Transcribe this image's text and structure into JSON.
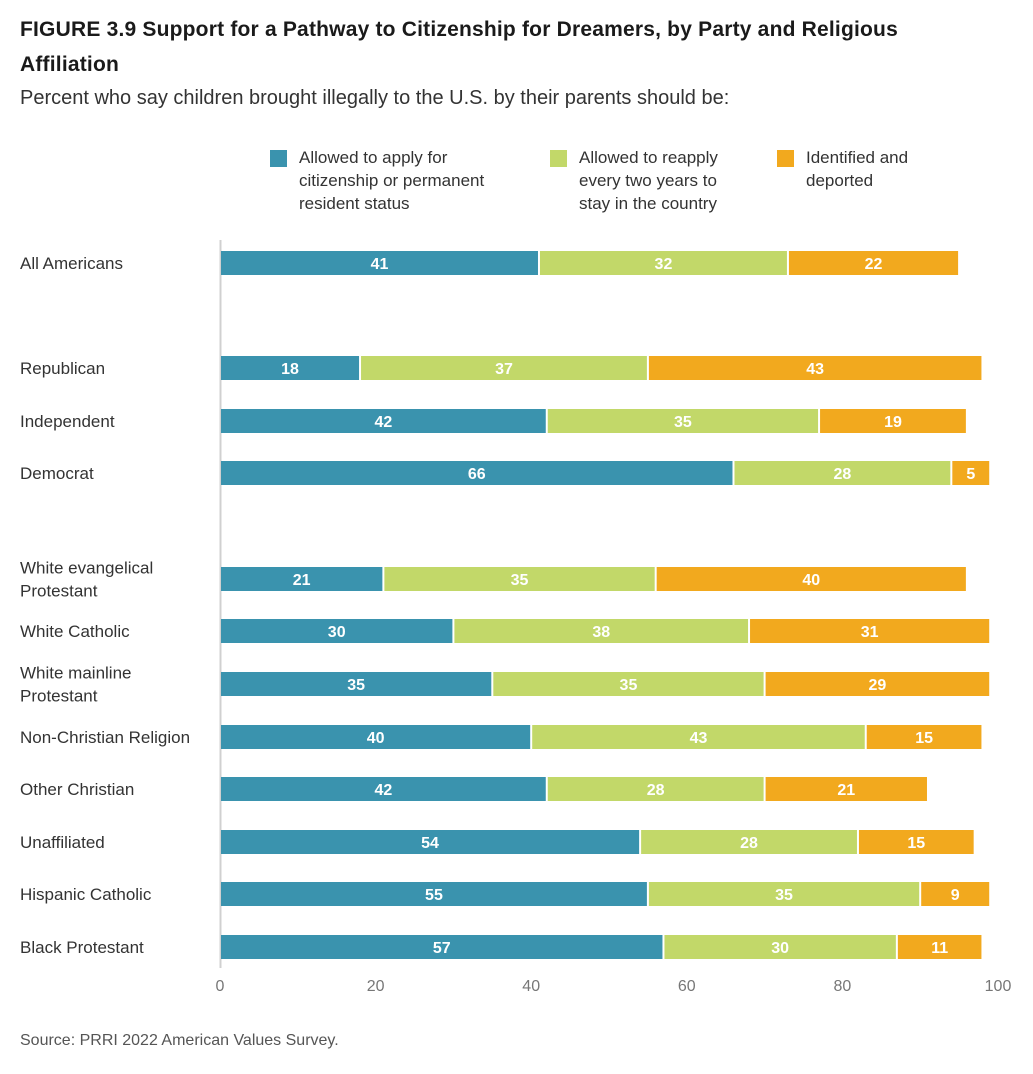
{
  "title_line1": "FIGURE 3.9  Support for a Pathway to Citizenship for Dreamers, by Party and Religious",
  "title_line2": "Affiliation",
  "subtitle": "Percent who say children brought illegally to the U.S. by their parents should be:",
  "source": "Source: PRRI 2022 American Values Survey.",
  "legend": [
    {
      "label_lines": [
        "Allowed to apply for",
        "citizenship or permanent",
        "resident status"
      ],
      "color": "#3A93AE"
    },
    {
      "label_lines": [
        "Allowed to reapply",
        "every two years to",
        "stay in the country"
      ],
      "color": "#C2D869"
    },
    {
      "label_lines": [
        "Identified and",
        "deported"
      ],
      "color": "#F2A91E"
    }
  ],
  "chart_data": {
    "type": "bar",
    "orientation": "horizontal",
    "stacked": true,
    "xlim": [
      0,
      100
    ],
    "xticks": [
      0,
      20,
      40,
      60,
      80,
      100
    ],
    "grid": false,
    "legend_position": "top",
    "series_colors": [
      "#3A93AE",
      "#C2D869",
      "#F2A91E"
    ],
    "series": [
      {
        "name": "Allowed to apply for citizenship or permanent resident status",
        "values": [
          41,
          18,
          42,
          66,
          21,
          30,
          35,
          40,
          42,
          54,
          55,
          57
        ]
      },
      {
        "name": "Allowed to reapply every two years to stay in the country",
        "values": [
          32,
          37,
          35,
          28,
          35,
          38,
          35,
          43,
          28,
          28,
          35,
          30
        ]
      },
      {
        "name": "Identified and deported",
        "values": [
          22,
          43,
          19,
          5,
          40,
          31,
          29,
          15,
          21,
          15,
          9,
          11
        ]
      }
    ],
    "categories": [
      {
        "lines": [
          "All Americans"
        ],
        "group": 0
      },
      {
        "lines": [
          "Republican"
        ],
        "group": 1
      },
      {
        "lines": [
          "Independent"
        ],
        "group": 1
      },
      {
        "lines": [
          "Democrat"
        ],
        "group": 1
      },
      {
        "lines": [
          "White evangelical",
          "Protestant"
        ],
        "group": 2
      },
      {
        "lines": [
          "White Catholic"
        ],
        "group": 2
      },
      {
        "lines": [
          "White mainline",
          "Protestant"
        ],
        "group": 2
      },
      {
        "lines": [
          "Non-Christian Religion"
        ],
        "group": 2
      },
      {
        "lines": [
          "Other Christian"
        ],
        "group": 2
      },
      {
        "lines": [
          "Unaffiliated"
        ],
        "group": 2
      },
      {
        "lines": [
          "Hispanic Catholic"
        ],
        "group": 2
      },
      {
        "lines": [
          "Black Protestant"
        ],
        "group": 2
      }
    ]
  }
}
